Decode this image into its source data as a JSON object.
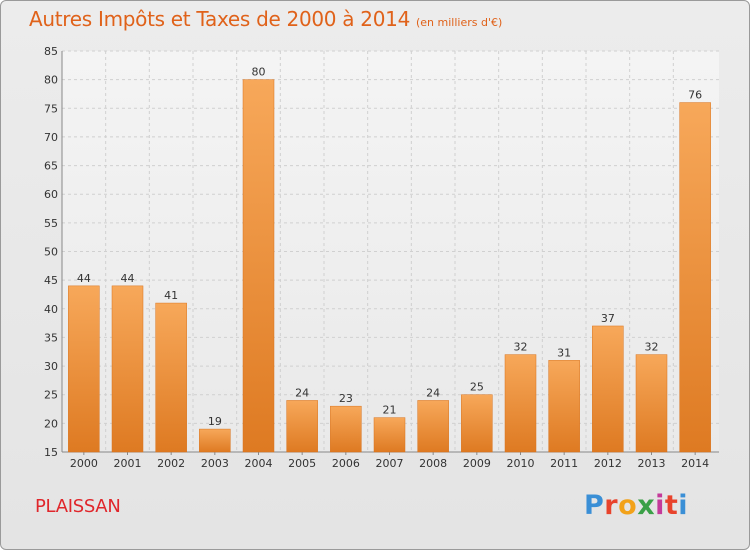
{
  "header": {
    "title": "Autres Impôts et Taxes de 2000 à 2014",
    "subtitle": "(en milliers d'€)"
  },
  "footer": {
    "commune": "PLAISSAN",
    "logo_letters": [
      "P",
      "r",
      "o",
      "x",
      "i",
      "t",
      "i"
    ],
    "logo_colors": [
      "#3a8fd6",
      "#e8432c",
      "#f2a21a",
      "#3aa047",
      "#c43a9a",
      "#e8432c",
      "#3a8fd6"
    ]
  },
  "colors": {
    "title": "#e0621a",
    "bar_light": "#f7a85a",
    "bar_dark": "#e07d24",
    "commune": "#e0262b"
  },
  "chart_data": {
    "type": "bar",
    "categories": [
      "2000",
      "2001",
      "2002",
      "2003",
      "2004",
      "2005",
      "2006",
      "2007",
      "2008",
      "2009",
      "2010",
      "2011",
      "2012",
      "2013",
      "2014"
    ],
    "values": [
      44,
      44,
      41,
      19,
      80,
      24,
      23,
      21,
      24,
      25,
      32,
      31,
      37,
      32,
      76
    ],
    "data_labels": [
      "44",
      "44",
      "41",
      "19",
      "80",
      "24",
      "23",
      "21",
      "24",
      "25",
      "32",
      "31",
      "37",
      "32",
      "76"
    ],
    "title": "Autres Impôts et Taxes de 2000 à 2014",
    "subtitle": "(en milliers d'€)",
    "xlabel": "",
    "ylabel": "",
    "ylim": [
      15,
      85
    ],
    "yticks": [
      15,
      20,
      25,
      30,
      35,
      40,
      45,
      50,
      55,
      60,
      65,
      70,
      75,
      80,
      85
    ],
    "grid": true,
    "legend": "none"
  }
}
